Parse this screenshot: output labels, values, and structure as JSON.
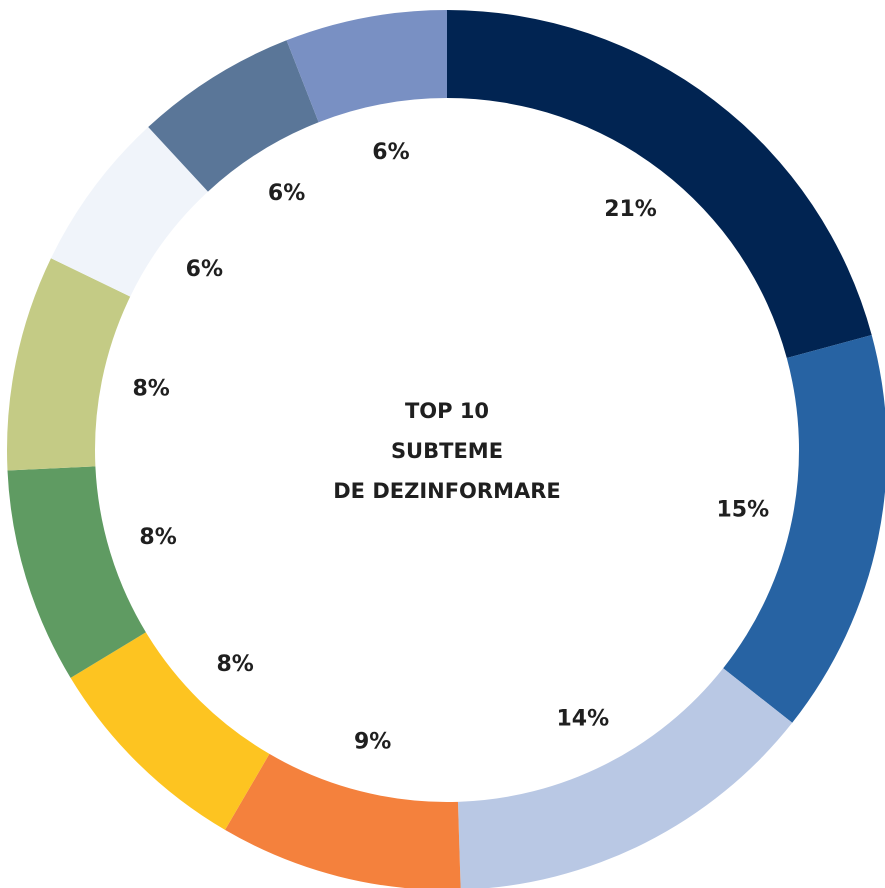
{
  "chart_data": {
    "type": "donut",
    "center_text": [
      "TOP 10",
      "SUBTEME",
      "DE DEZINFORMARE"
    ],
    "values": [
      21,
      15,
      14,
      9,
      8,
      8,
      8,
      6,
      6,
      6
    ],
    "value_labels": [
      "21%",
      "15%",
      "14%",
      "9%",
      "8%",
      "8%",
      "8%",
      "6%",
      "6%",
      "6%"
    ],
    "colors": [
      "#012452",
      "#2763a3",
      "#b9c8e4",
      "#f4813d",
      "#fdc421",
      "#5f9b62",
      "#c4cb85",
      "#f0f4fa",
      "#5a7698",
      "#7990c3"
    ]
  }
}
